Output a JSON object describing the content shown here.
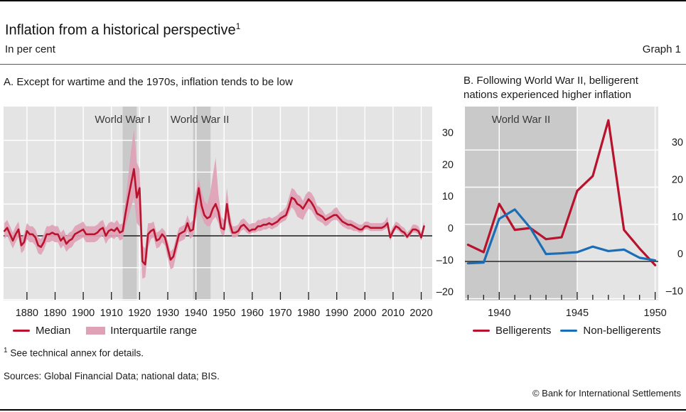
{
  "header": {
    "title": "Inflation from a historical perspective",
    "title_footnote_marker": "1",
    "unit_label": "In per cent",
    "graph_label": "Graph 1"
  },
  "panels": {
    "a": {
      "title": "A. Except for wartime and the 1970s, inflation tends to be low",
      "legend": [
        {
          "label": "Median",
          "type": "line",
          "color": "#b8122d"
        },
        {
          "label": "Interquartile range",
          "type": "band",
          "color": "#dfa1b5"
        }
      ]
    },
    "b": {
      "title_line1": "B. Following World War II, belligerent",
      "title_line2": "nations experienced higher inflation",
      "legend": [
        {
          "label": "Belligerents",
          "type": "line",
          "color": "#b8122d"
        },
        {
          "label": "Non-belligerents",
          "type": "line",
          "color": "#1b6eb5"
        }
      ]
    }
  },
  "colors": {
    "median_red": "#b8122d",
    "iqr_pink": "#dfa1b5",
    "belligerents_red": "#b8122d",
    "non_belligerents_blue": "#1b6eb5",
    "plot_background": "#e4e4e4",
    "war_shading": "#c9c9c9",
    "gridline": "#ffffff",
    "zero_line": "#1a1a1a",
    "text": "#1a1a1a"
  },
  "chart_data": [
    {
      "panel": "A",
      "type": "line",
      "title": "A. Except for wartime and the 1970s, inflation tends to be low",
      "unit": "per cent",
      "start_year": 1872,
      "end_year": 2021,
      "x_range": [
        1871.7,
        2023.9
      ],
      "y_range": [
        -20.3,
        40.6
      ],
      "x_ticks": [
        1880,
        1890,
        1900,
        1910,
        1920,
        1930,
        1940,
        1950,
        1960,
        1970,
        1980,
        1990,
        2000,
        2010,
        2020
      ],
      "x_gridlines": [
        1880,
        1890,
        1900,
        1910,
        1920,
        1930,
        1940,
        1950,
        1960,
        1970,
        1980,
        1990,
        2000,
        2010,
        2020
      ],
      "y_ticks": [
        -20,
        -10,
        0,
        10,
        20,
        30
      ],
      "grid": true,
      "legend_position": "bottom",
      "shaded_periods": [
        {
          "label": "World War I",
          "from": 1914,
          "to": 1919,
          "label_center_year": 1914
        },
        {
          "label": "World War II",
          "from": 1939,
          "to": 1945.2,
          "label_center_year": 1941.4
        }
      ],
      "series": [
        {
          "name": "Median",
          "color": "#b8122d",
          "width": 2.6,
          "values": [
            1.5,
            2.5,
            0.5,
            -1.5,
            0.5,
            2,
            -3,
            -2,
            1.5,
            0.5,
            0.5,
            -0.5,
            -3,
            -3.5,
            -2,
            0.5,
            0.5,
            1,
            0.5,
            0.5,
            -1.5,
            -0.5,
            -2.5,
            -1.5,
            -1,
            0.5,
            1,
            1.5,
            2,
            0.5,
            0.5,
            0.5,
            0.5,
            1,
            2,
            2.5,
            0,
            1.5,
            2,
            1.5,
            2.5,
            1,
            1.5,
            7,
            12,
            16.5,
            21,
            12,
            15,
            -8,
            -9,
            0.5,
            1.5,
            2,
            -1.5,
            -1,
            0.5,
            -0.5,
            -4,
            -7.5,
            -6.5,
            -3,
            0.5,
            1,
            1.5,
            4,
            1.5,
            2,
            9.5,
            15,
            9.5,
            6.5,
            5.5,
            6,
            8.5,
            10,
            7.5,
            2.5,
            2,
            10,
            4,
            1,
            1,
            1.5,
            3,
            3.5,
            2.5,
            1.5,
            2,
            2,
            3,
            3,
            3.5,
            3.5,
            4,
            3.5,
            4,
            4.5,
            5.5,
            6,
            6.5,
            9,
            12,
            11.5,
            10,
            9.5,
            8.5,
            10,
            11.5,
            10.5,
            9,
            7,
            6.5,
            6,
            5,
            5.5,
            6,
            6.5,
            6.5,
            5.5,
            4.5,
            4,
            3.5,
            3.5,
            3,
            2.5,
            2,
            2,
            3,
            3,
            2.5,
            2.5,
            2.5,
            2.5,
            2.5,
            3,
            4,
            -0.5,
            1.5,
            3,
            2.5,
            1.5,
            1,
            -0.3,
            0.8,
            2,
            2,
            1.5,
            -0.5,
            3
          ]
        }
      ],
      "band": {
        "name": "Interquartile range",
        "color": "#dfa1b5",
        "lower": [
          -1,
          0,
          -2,
          -4,
          -2,
          -0.5,
          -5.5,
          -4.5,
          -1,
          -2,
          -2,
          -3,
          -5.5,
          -6,
          -4.5,
          -2,
          -2,
          -1.5,
          -2,
          -2,
          -4,
          -3,
          -5,
          -4,
          -3.5,
          -2,
          -1.5,
          -1,
          -0.5,
          -2,
          -2,
          -2,
          -2,
          -1.5,
          -0.5,
          0,
          -2.5,
          -1,
          -0.5,
          -1,
          0,
          -1.5,
          -1,
          3,
          6,
          9,
          12,
          4,
          3,
          -13.5,
          -13,
          -4,
          -1,
          -0.5,
          -4,
          -3.5,
          -2,
          -3,
          -7,
          -10.5,
          -10,
          -6,
          -2,
          -1.5,
          -1,
          1.5,
          -1,
          0,
          5.5,
          9,
          6,
          4,
          3,
          3,
          5,
          6,
          4,
          0.5,
          0,
          5.5,
          1.5,
          -0.5,
          -0.5,
          0,
          1.5,
          2,
          1,
          0.5,
          1,
          1,
          1.5,
          1.5,
          2,
          2,
          2.5,
          2,
          2.5,
          3,
          4,
          4.5,
          5,
          7,
          9,
          8,
          6,
          5.5,
          5,
          7,
          8.5,
          8,
          6.5,
          5,
          4.5,
          4,
          3,
          3.5,
          4.5,
          5,
          5,
          4,
          3,
          2.5,
          2,
          2,
          1.5,
          1.5,
          1,
          1,
          2,
          2,
          1.5,
          1.5,
          1.5,
          1.5,
          1.5,
          2,
          2.5,
          -1.5,
          0.5,
          2,
          1.5,
          0.5,
          0,
          -1,
          0,
          1,
          1,
          0.5,
          -1.5,
          1.5
        ],
        "upper": [
          4,
          5,
          3,
          1,
          3,
          4.5,
          -0.5,
          0.5,
          4,
          3,
          3,
          2,
          -0.5,
          -1,
          0.5,
          3,
          3,
          3.5,
          3,
          3,
          1,
          2,
          0,
          1,
          1.5,
          3,
          3.5,
          4,
          4.5,
          3,
          3,
          3,
          3,
          3.5,
          4.5,
          5,
          2.5,
          4,
          4.5,
          4,
          5,
          3.5,
          4,
          11,
          19,
          27,
          33.5,
          23,
          21,
          -3,
          -4,
          4,
          4,
          4.5,
          1,
          1.5,
          2.5,
          1.5,
          -1.5,
          -5,
          -4,
          -0.5,
          2.5,
          3,
          3.5,
          6.5,
          4,
          5,
          14,
          18,
          14,
          11,
          10,
          13,
          19,
          24.5,
          13,
          6,
          5,
          15,
          7,
          3,
          3,
          3.5,
          5,
          5.5,
          4.5,
          3.5,
          4,
          4,
          5,
          5,
          5.5,
          5.5,
          6,
          5.5,
          6,
          6.5,
          7.5,
          8,
          9,
          12,
          15,
          14.5,
          13,
          12.5,
          11,
          13,
          14,
          13.5,
          12,
          9.5,
          9,
          8,
          6.5,
          7,
          7.5,
          8.5,
          9,
          7.5,
          6.5,
          5.5,
          5,
          5,
          4.5,
          4,
          3.5,
          3.5,
          4.5,
          4.5,
          4,
          4,
          4,
          4,
          4,
          4.5,
          6,
          1,
          3,
          4.5,
          4,
          3,
          2.5,
          1,
          2,
          3.5,
          3.5,
          3,
          1,
          4.5
        ]
      }
    },
    {
      "panel": "B",
      "type": "line",
      "title": "B. Following World War II, belligerent nations experienced higher inflation",
      "unit": "per cent",
      "start_year": 1938,
      "end_year": 1950,
      "x_range": [
        1937.8,
        1950.2
      ],
      "y_range": [
        -10.5,
        41.7
      ],
      "x_ticks": [
        1940,
        1945,
        1950
      ],
      "x_gridlines": [
        1940,
        1945,
        1950
      ],
      "x_ticks_minor": [
        1938,
        1939,
        1941,
        1942,
        1943,
        1944,
        1946,
        1947,
        1948,
        1949
      ],
      "y_ticks": [
        -10,
        0,
        10,
        20,
        30
      ],
      "grid": true,
      "legend_position": "bottom",
      "shaded_periods": [
        {
          "label": "World War II",
          "from": 1937.8,
          "to": 1945,
          "label_center_year": 1941.4
        }
      ],
      "series": [
        {
          "name": "Belligerents",
          "color": "#b8122d",
          "width": 3.2,
          "values": [
            4.5,
            2.5,
            15.5,
            8.5,
            9,
            6,
            6.5,
            19,
            23,
            38,
            8.5,
            3.5,
            -1
          ]
        },
        {
          "name": "Non-belligerents",
          "color": "#1b6eb5",
          "width": 3.2,
          "values": [
            -0.5,
            -0.3,
            11.5,
            14,
            9,
            2,
            2.2,
            2.5,
            4,
            2.8,
            3.2,
            1,
            0.3
          ]
        }
      ]
    }
  ],
  "footnote": {
    "marker": "1",
    "text": "See technical annex for details."
  },
  "sources": "Sources: Global Financial Data; national data; BIS.",
  "copyright": "© Bank for International Settlements"
}
